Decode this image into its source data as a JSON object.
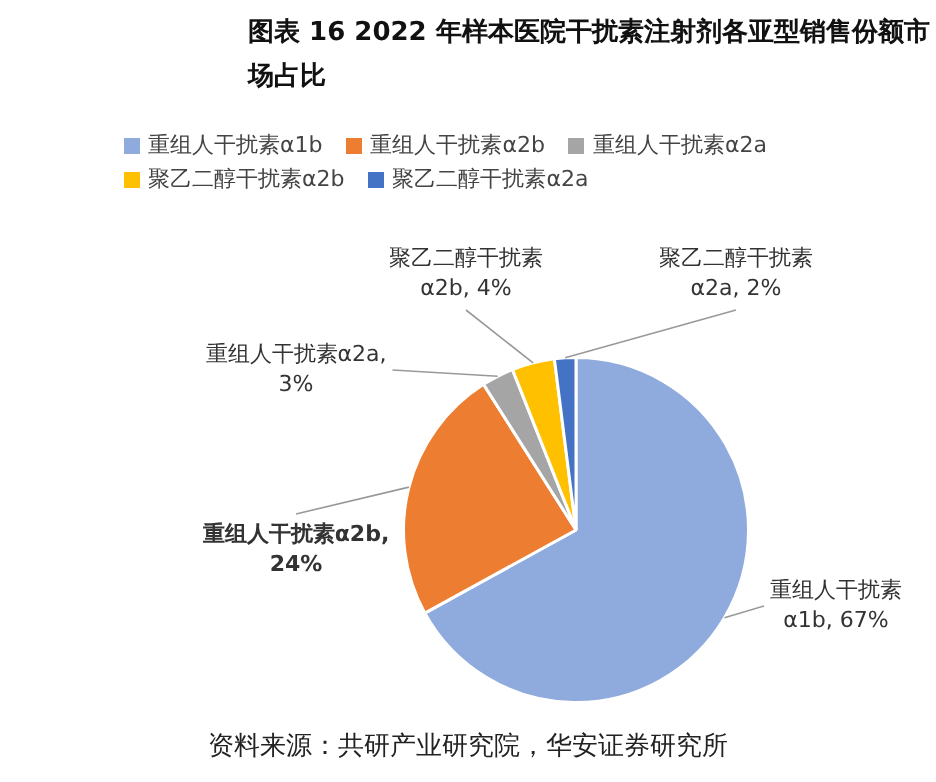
{
  "chart_data": {
    "type": "pie",
    "title": "图表 16 2022 年样本医院干扰素注射剂各亚型销售份额市场占比",
    "categories": [
      "重组人干扰素α1b",
      "重组人干扰素α2b",
      "重组人干扰素α2a",
      "聚乙二醇干扰素α2b",
      "聚乙二醇干扰素α2a"
    ],
    "values": [
      67,
      24,
      3,
      4,
      2
    ],
    "colors": [
      "#8faadc",
      "#ed7d31",
      "#a5a5a5",
      "#ffc000",
      "#4472c4"
    ],
    "value_labels": [
      "重组人干扰素α1b, 67%",
      "重组人干扰素α2b, 24%",
      "重组人干扰素α2a, 3%",
      "聚乙二醇干扰素α2b, 4%",
      "聚乙二醇干扰素α2a, 2%"
    ],
    "legend": "top",
    "annotations": [
      "资料来源：共研产业研究院，华安证券研究所"
    ]
  }
}
